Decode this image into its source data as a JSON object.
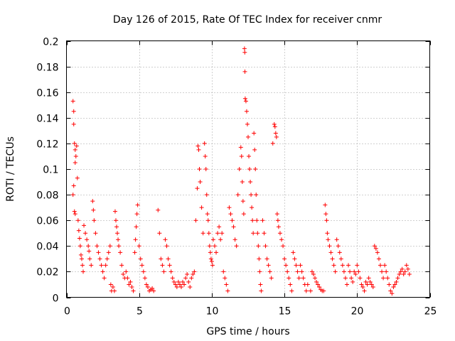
{
  "chart_data": {
    "type": "scatter",
    "title": "Day 126 of 2015, Rate Of TEC Index for receiver cnmr",
    "xlabel": "GPS time / hours",
    "ylabel": "ROTI / TECUs",
    "xlim": [
      0,
      25
    ],
    "ylim": [
      0,
      0.2
    ],
    "x_ticks": [
      0,
      5,
      10,
      15,
      20,
      25
    ],
    "x_tick_labels": [
      "0",
      "5",
      "10",
      "15",
      "20",
      "25"
    ],
    "y_ticks": [
      0,
      0.02,
      0.04,
      0.06,
      0.08,
      0.1,
      0.12,
      0.14,
      0.16,
      0.18,
      0.2
    ],
    "y_tick_labels": [
      "0",
      "0.02",
      "0.04",
      "0.06",
      "0.08",
      "0.1",
      "0.12",
      "0.14",
      "0.16",
      "0.18",
      "0.2"
    ],
    "grid": true,
    "marker": "plus",
    "color": "#ff0000",
    "series": [
      {
        "name": "ROTI",
        "points": [
          [
            0.45,
            0.153
          ],
          [
            0.5,
            0.145
          ],
          [
            0.5,
            0.135
          ],
          [
            0.55,
            0.12
          ],
          [
            0.6,
            0.115
          ],
          [
            0.65,
            0.11
          ],
          [
            0.6,
            0.105
          ],
          [
            0.7,
            0.118
          ],
          [
            0.5,
            0.087
          ],
          [
            0.45,
            0.08
          ],
          [
            0.55,
            0.067
          ],
          [
            0.6,
            0.065
          ],
          [
            0.75,
            0.093
          ],
          [
            0.8,
            0.06
          ],
          [
            0.85,
            0.052
          ],
          [
            0.9,
            0.046
          ],
          [
            0.95,
            0.04
          ],
          [
            1.0,
            0.033
          ],
          [
            1.05,
            0.03
          ],
          [
            1.1,
            0.025
          ],
          [
            1.15,
            0.02
          ],
          [
            1.2,
            0.056
          ],
          [
            1.3,
            0.05
          ],
          [
            1.4,
            0.045
          ],
          [
            1.5,
            0.04
          ],
          [
            1.55,
            0.036
          ],
          [
            1.6,
            0.03
          ],
          [
            1.7,
            0.025
          ],
          [
            1.8,
            0.075
          ],
          [
            1.85,
            0.068
          ],
          [
            1.9,
            0.06
          ],
          [
            2.0,
            0.05
          ],
          [
            2.1,
            0.04
          ],
          [
            2.2,
            0.035
          ],
          [
            2.3,
            0.03
          ],
          [
            2.4,
            0.025
          ],
          [
            2.5,
            0.02
          ],
          [
            2.6,
            0.015
          ],
          [
            2.7,
            0.025
          ],
          [
            2.8,
            0.03
          ],
          [
            2.9,
            0.035
          ],
          [
            3.0,
            0.04
          ],
          [
            3.05,
            0.01
          ],
          [
            3.1,
            0.005
          ],
          [
            3.2,
            0.008
          ],
          [
            3.3,
            0.005
          ],
          [
            3.35,
            0.067
          ],
          [
            3.4,
            0.06
          ],
          [
            3.45,
            0.055
          ],
          [
            3.5,
            0.05
          ],
          [
            3.55,
            0.045
          ],
          [
            3.6,
            0.04
          ],
          [
            3.7,
            0.035
          ],
          [
            3.8,
            0.025
          ],
          [
            3.9,
            0.018
          ],
          [
            4.0,
            0.015
          ],
          [
            4.1,
            0.02
          ],
          [
            4.2,
            0.015
          ],
          [
            4.3,
            0.01
          ],
          [
            4.4,
            0.012
          ],
          [
            4.5,
            0.008
          ],
          [
            4.6,
            0.005
          ],
          [
            4.7,
            0.035
          ],
          [
            4.75,
            0.045
          ],
          [
            4.8,
            0.055
          ],
          [
            4.85,
            0.065
          ],
          [
            4.9,
            0.072
          ],
          [
            5.0,
            0.04
          ],
          [
            5.1,
            0.03
          ],
          [
            5.2,
            0.025
          ],
          [
            5.3,
            0.02
          ],
          [
            5.4,
            0.015
          ],
          [
            5.5,
            0.01
          ],
          [
            5.6,
            0.008
          ],
          [
            5.7,
            0.005
          ],
          [
            5.8,
            0.006
          ],
          [
            5.9,
            0.007
          ],
          [
            6.0,
            0.005
          ],
          [
            6.3,
            0.068
          ],
          [
            6.4,
            0.05
          ],
          [
            6.5,
            0.03
          ],
          [
            6.6,
            0.025
          ],
          [
            6.7,
            0.02
          ],
          [
            6.8,
            0.045
          ],
          [
            6.9,
            0.04
          ],
          [
            7.0,
            0.03
          ],
          [
            7.1,
            0.025
          ],
          [
            7.2,
            0.02
          ],
          [
            7.3,
            0.015
          ],
          [
            7.4,
            0.012
          ],
          [
            7.5,
            0.01
          ],
          [
            7.6,
            0.008
          ],
          [
            7.7,
            0.012
          ],
          [
            7.8,
            0.01
          ],
          [
            7.9,
            0.008
          ],
          [
            8.0,
            0.012
          ],
          [
            8.1,
            0.01
          ],
          [
            8.2,
            0.015
          ],
          [
            8.3,
            0.018
          ],
          [
            8.4,
            0.012
          ],
          [
            8.5,
            0.008
          ],
          [
            8.6,
            0.015
          ],
          [
            8.7,
            0.018
          ],
          [
            8.8,
            0.02
          ],
          [
            8.9,
            0.06
          ],
          [
            9.0,
            0.085
          ],
          [
            9.05,
            0.118
          ],
          [
            9.1,
            0.115
          ],
          [
            9.15,
            0.1
          ],
          [
            9.2,
            0.09
          ],
          [
            9.3,
            0.07
          ],
          [
            9.4,
            0.05
          ],
          [
            9.5,
            0.12
          ],
          [
            9.55,
            0.11
          ],
          [
            9.6,
            0.1
          ],
          [
            9.65,
            0.08
          ],
          [
            9.7,
            0.065
          ],
          [
            9.75,
            0.06
          ],
          [
            9.8,
            0.05
          ],
          [
            9.85,
            0.04
          ],
          [
            9.9,
            0.035
          ],
          [
            9.95,
            0.03
          ],
          [
            10.0,
            0.028
          ],
          [
            10.05,
            0.025
          ],
          [
            10.1,
            0.045
          ],
          [
            10.2,
            0.04
          ],
          [
            10.3,
            0.035
          ],
          [
            10.4,
            0.05
          ],
          [
            10.5,
            0.055
          ],
          [
            10.6,
            0.045
          ],
          [
            10.7,
            0.05
          ],
          [
            10.8,
            0.02
          ],
          [
            10.9,
            0.015
          ],
          [
            11.0,
            0.01
          ],
          [
            11.1,
            0.005
          ],
          [
            11.2,
            0.07
          ],
          [
            11.3,
            0.065
          ],
          [
            11.4,
            0.06
          ],
          [
            11.5,
            0.055
          ],
          [
            11.6,
            0.045
          ],
          [
            11.7,
            0.04
          ],
          [
            11.8,
            0.08
          ],
          [
            11.9,
            0.1
          ],
          [
            12.0,
            0.117
          ],
          [
            12.05,
            0.11
          ],
          [
            12.1,
            0.09
          ],
          [
            12.15,
            0.075
          ],
          [
            12.2,
            0.065
          ],
          [
            12.25,
            0.194
          ],
          [
            12.27,
            0.191
          ],
          [
            12.28,
            0.176
          ],
          [
            12.3,
            0.155
          ],
          [
            12.35,
            0.153
          ],
          [
            12.4,
            0.145
          ],
          [
            12.45,
            0.135
          ],
          [
            12.5,
            0.125
          ],
          [
            12.55,
            0.11
          ],
          [
            12.6,
            0.1
          ],
          [
            12.65,
            0.09
          ],
          [
            12.7,
            0.08
          ],
          [
            12.75,
            0.07
          ],
          [
            12.8,
            0.06
          ],
          [
            12.85,
            0.05
          ],
          [
            12.9,
            0.128
          ],
          [
            12.95,
            0.115
          ],
          [
            13.0,
            0.1
          ],
          [
            13.05,
            0.08
          ],
          [
            13.1,
            0.06
          ],
          [
            13.15,
            0.05
          ],
          [
            13.2,
            0.04
          ],
          [
            13.25,
            0.03
          ],
          [
            13.3,
            0.02
          ],
          [
            13.35,
            0.01
          ],
          [
            13.4,
            0.005
          ],
          [
            13.5,
            0.06
          ],
          [
            13.6,
            0.05
          ],
          [
            13.7,
            0.04
          ],
          [
            13.8,
            0.03
          ],
          [
            13.9,
            0.025
          ],
          [
            14.0,
            0.02
          ],
          [
            14.1,
            0.015
          ],
          [
            14.2,
            0.12
          ],
          [
            14.3,
            0.135
          ],
          [
            14.35,
            0.133
          ],
          [
            14.4,
            0.128
          ],
          [
            14.45,
            0.125
          ],
          [
            14.5,
            0.065
          ],
          [
            14.55,
            0.06
          ],
          [
            14.6,
            0.055
          ],
          [
            14.7,
            0.05
          ],
          [
            14.8,
            0.045
          ],
          [
            14.9,
            0.04
          ],
          [
            15.0,
            0.03
          ],
          [
            15.1,
            0.025
          ],
          [
            15.2,
            0.02
          ],
          [
            15.3,
            0.015
          ],
          [
            15.4,
            0.01
          ],
          [
            15.5,
            0.005
          ],
          [
            15.6,
            0.035
          ],
          [
            15.7,
            0.03
          ],
          [
            15.8,
            0.025
          ],
          [
            15.9,
            0.02
          ],
          [
            16.0,
            0.015
          ],
          [
            16.1,
            0.025
          ],
          [
            16.2,
            0.02
          ],
          [
            16.3,
            0.015
          ],
          [
            16.4,
            0.01
          ],
          [
            16.5,
            0.005
          ],
          [
            16.6,
            0.01
          ],
          [
            16.8,
            0.005
          ],
          [
            16.9,
            0.02
          ],
          [
            17.0,
            0.018
          ],
          [
            17.1,
            0.015
          ],
          [
            17.2,
            0.012
          ],
          [
            17.3,
            0.01
          ],
          [
            17.4,
            0.008
          ],
          [
            17.5,
            0.006
          ],
          [
            17.6,
            0.005
          ],
          [
            17.7,
            0.005
          ],
          [
            17.8,
            0.072
          ],
          [
            17.85,
            0.065
          ],
          [
            17.9,
            0.06
          ],
          [
            17.95,
            0.05
          ],
          [
            18.0,
            0.045
          ],
          [
            18.1,
            0.04
          ],
          [
            18.2,
            0.035
          ],
          [
            18.3,
            0.03
          ],
          [
            18.4,
            0.025
          ],
          [
            18.5,
            0.02
          ],
          [
            18.6,
            0.045
          ],
          [
            18.7,
            0.04
          ],
          [
            18.8,
            0.035
          ],
          [
            18.9,
            0.03
          ],
          [
            19.0,
            0.025
          ],
          [
            19.1,
            0.02
          ],
          [
            19.2,
            0.015
          ],
          [
            19.3,
            0.01
          ],
          [
            19.4,
            0.025
          ],
          [
            19.5,
            0.02
          ],
          [
            19.6,
            0.015
          ],
          [
            19.7,
            0.012
          ],
          [
            19.8,
            0.02
          ],
          [
            19.9,
            0.018
          ],
          [
            20.0,
            0.025
          ],
          [
            20.1,
            0.02
          ],
          [
            20.2,
            0.015
          ],
          [
            20.3,
            0.01
          ],
          [
            20.4,
            0.008
          ],
          [
            20.5,
            0.005
          ],
          [
            20.6,
            0.012
          ],
          [
            20.7,
            0.01
          ],
          [
            20.8,
            0.015
          ],
          [
            20.9,
            0.012
          ],
          [
            21.0,
            0.01
          ],
          [
            21.1,
            0.008
          ],
          [
            21.2,
            0.04
          ],
          [
            21.3,
            0.038
          ],
          [
            21.4,
            0.035
          ],
          [
            21.5,
            0.03
          ],
          [
            21.6,
            0.025
          ],
          [
            21.7,
            0.02
          ],
          [
            21.8,
            0.015
          ],
          [
            21.9,
            0.025
          ],
          [
            22.0,
            0.02
          ],
          [
            22.1,
            0.015
          ],
          [
            22.2,
            0.01
          ],
          [
            22.3,
            0.005
          ],
          [
            22.4,
            0.003
          ],
          [
            22.5,
            0.008
          ],
          [
            22.6,
            0.01
          ],
          [
            22.7,
            0.012
          ],
          [
            22.8,
            0.015
          ],
          [
            22.9,
            0.018
          ],
          [
            23.0,
            0.02
          ],
          [
            23.1,
            0.022
          ],
          [
            23.2,
            0.018
          ],
          [
            23.3,
            0.02
          ],
          [
            23.4,
            0.025
          ],
          [
            23.5,
            0.022
          ],
          [
            23.6,
            0.018
          ]
        ]
      }
    ]
  }
}
